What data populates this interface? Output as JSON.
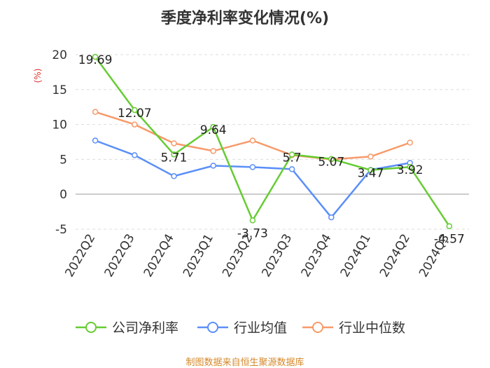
{
  "chart_data": {
    "type": "line",
    "title": "季度净利率变化情况(%)",
    "ylabel": "(%)",
    "xlabel": "",
    "categories": [
      "2022Q2",
      "2022Q3",
      "2022Q4",
      "2023Q1",
      "2023Q2",
      "2023Q3",
      "2023Q4",
      "2024Q1",
      "2024Q2",
      "2024Q3"
    ],
    "ylim": [
      -5,
      20
    ],
    "yticks": [
      -5,
      0,
      5,
      10,
      15,
      20
    ],
    "grid": true,
    "legend_position": "bottom",
    "series": [
      {
        "name": "公司净利率",
        "color": "#66cc33",
        "values": [
          19.69,
          12.07,
          5.71,
          9.64,
          -3.73,
          5.7,
          5.07,
          3.47,
          3.92,
          -4.57
        ],
        "labels": [
          "19.69",
          "12.07",
          "5.71",
          "9.64",
          "-3.73",
          "5.7",
          "5.07",
          "3.47",
          "3.92",
          "-4.57"
        ]
      },
      {
        "name": "行业均值",
        "color": "#5b8ff9",
        "values": [
          7.7,
          5.6,
          2.6,
          4.1,
          3.9,
          3.6,
          -3.3,
          3.5,
          4.5,
          null
        ]
      },
      {
        "name": "行业中位数",
        "color": "#f79a6a",
        "values": [
          11.8,
          10.0,
          7.3,
          6.2,
          7.7,
          5.6,
          5.0,
          5.4,
          7.4,
          null
        ]
      }
    ]
  },
  "footer": {
    "source": "制图数据来自恒生聚源数据库"
  }
}
